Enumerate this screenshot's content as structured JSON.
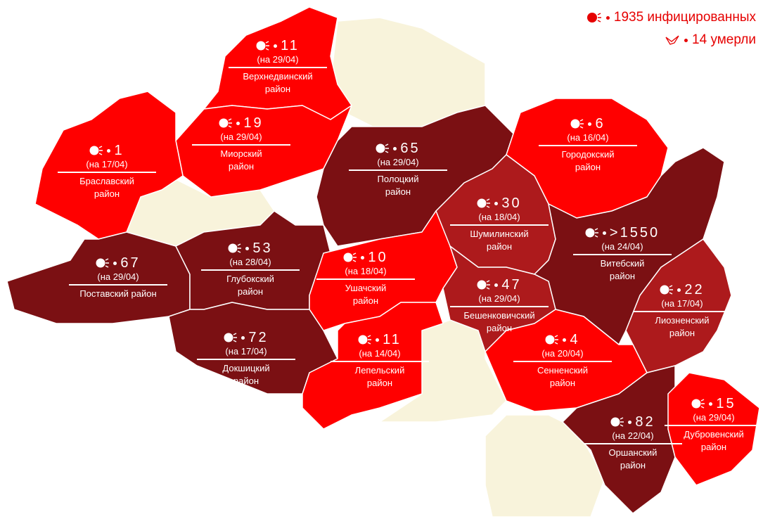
{
  "legend": {
    "infected": "1935 инфицированных",
    "died": "14 умерли"
  },
  "colors": {
    "high": "#7b1013",
    "mid": "#ad1a1c",
    "low": "#ff0000",
    "none": "#f8f3db"
  },
  "regions": [
    {
      "count": "11",
      "date": "(на 29/04)",
      "name": [
        "Верхнедвинский",
        "район"
      ],
      "level": "low"
    },
    {
      "count": "19",
      "date": "(на 29/04)",
      "name": [
        "Миорский",
        "район"
      ],
      "level": "low"
    },
    {
      "count": "1",
      "date": "(на 17/04)",
      "name": [
        "Браславский",
        "район"
      ],
      "level": "low"
    },
    {
      "count": "65",
      "date": "(на 29/04)",
      "name": [
        "Полоцкий",
        "район"
      ],
      "level": "high"
    },
    {
      "count": "6",
      "date": "(на 16/04)",
      "name": [
        "Городокский",
        "район"
      ],
      "level": "low"
    },
    {
      "count": "30",
      "date": "(на 18/04)",
      "name": [
        "Шумилинский",
        "район"
      ],
      "level": "mid"
    },
    {
      "count": "67",
      "date": "(на 29/04)",
      "name": [
        "Поставский район"
      ],
      "level": "high"
    },
    {
      "count": "53",
      "date": "(на 28/04)",
      "name": [
        "Глубокский",
        "район"
      ],
      "level": "high"
    },
    {
      "count": "10",
      "date": "(на 18/04)",
      "name": [
        "Ушачский",
        "район"
      ],
      "level": "low"
    },
    {
      "count": ">1550",
      "date": "(на 24/04)",
      "name": [
        "Витебский",
        "район"
      ],
      "level": "high"
    },
    {
      "count": "47",
      "date": "(на 29/04)",
      "name": [
        "Бешенковичский",
        "район"
      ],
      "level": "mid"
    },
    {
      "count": "22",
      "date": "(на 17/04)",
      "name": [
        "Лиозненский",
        "район"
      ],
      "level": "mid"
    },
    {
      "count": "72",
      "date": "(на 17/04)",
      "name": [
        "Докшицкий",
        "район"
      ],
      "level": "high"
    },
    {
      "count": "11",
      "date": "(на 14/04)",
      "name": [
        "Лепельский",
        "район"
      ],
      "level": "low"
    },
    {
      "count": "4",
      "date": "(на 20/04)",
      "name": [
        "Сенненский",
        "район"
      ],
      "level": "low"
    },
    {
      "count": "82",
      "date": "(на 22/04)",
      "name": [
        "Оршанский",
        "район"
      ],
      "level": "high"
    },
    {
      "count": "15",
      "date": "(на 29/04)",
      "name": [
        "Дубровенский",
        "район"
      ],
      "level": "low"
    }
  ]
}
